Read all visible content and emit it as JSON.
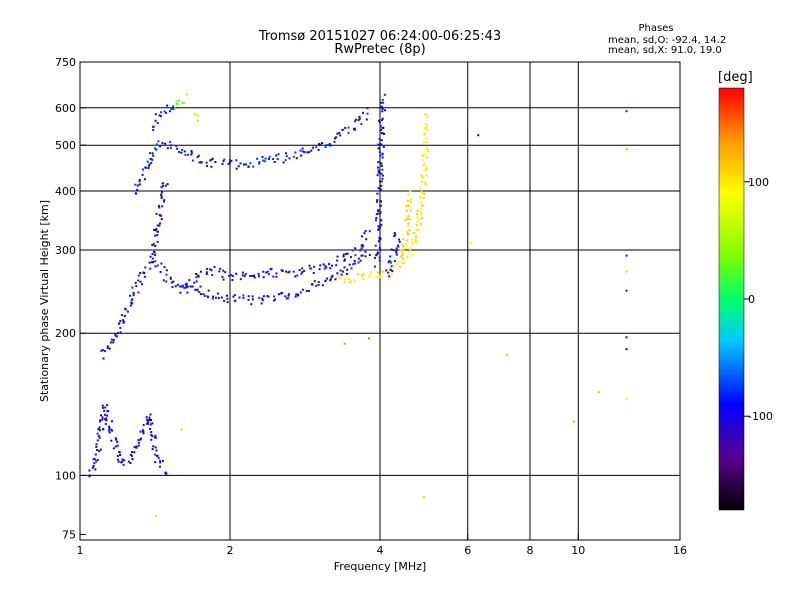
{
  "chart_data": {
    "type": "scatter",
    "title": "Tromsø 20151027 06:24:00-06:25:43",
    "subtitle": "RwPretec (8p)",
    "xlabel": "Frequency [MHz]",
    "ylabel": "Stationary phase Virtual Height [km]",
    "x_scale": "log2",
    "y_scale": "log",
    "xlim": [
      1,
      16
    ],
    "ylim": [
      73,
      750
    ],
    "x_ticks": [
      1,
      2,
      4,
      6,
      8,
      10,
      16
    ],
    "x_tick_labels": [
      "1",
      "2",
      "4",
      "6",
      "8",
      "10",
      "16"
    ],
    "x_gridlines": [
      2,
      4,
      6,
      8,
      10
    ],
    "y_ticks": [
      75,
      100,
      200,
      300,
      400,
      500,
      600,
      750
    ],
    "y_tick_labels": [
      "75",
      "100",
      "200",
      "300",
      "400",
      "500",
      "600",
      "750"
    ],
    "y_gridlines": [
      100,
      200,
      300,
      400,
      500,
      600
    ],
    "grid": true,
    "stats": {
      "heading": "Phases",
      "line_o": "mean, sd,O: -92.4, 14.2",
      "line_x": "mean, sd,X:  91.0, 19.0"
    },
    "colorbar": {
      "label": "[deg]",
      "range": [
        -180,
        180
      ],
      "ticks": [
        100,
        0,
        -100
      ],
      "tick_labels": [
        "100",
        "0",
        "-100"
      ],
      "colors": [
        "#000000",
        "#5a008c",
        "#0000ff",
        "#00c8ff",
        "#00ff6e",
        "#7aff00",
        "#ffff00",
        "#ff9600",
        "#ff0000"
      ]
    },
    "o_trace_color": "#1f3fe0",
    "x_trace_color": "#ffe600",
    "traces": [
      {
        "mode": "O",
        "phase": -95,
        "points": [
          [
            1.11,
            180
          ],
          [
            1.15,
            190
          ],
          [
            1.2,
            205
          ],
          [
            1.25,
            228
          ],
          [
            1.3,
            250
          ],
          [
            1.35,
            270
          ],
          [
            1.4,
            285
          ],
          [
            1.45,
            275
          ],
          [
            1.5,
            262
          ],
          [
            1.55,
            252
          ],
          [
            1.6,
            250
          ],
          [
            1.7,
            248
          ],
          [
            1.8,
            243
          ],
          [
            1.9,
            238
          ],
          [
            2.0,
            236
          ],
          [
            2.2,
            235
          ],
          [
            2.4,
            236
          ],
          [
            2.6,
            240
          ],
          [
            2.8,
            246
          ],
          [
            3.0,
            254
          ],
          [
            3.2,
            262
          ],
          [
            3.4,
            272
          ],
          [
            3.6,
            285
          ],
          [
            3.8,
            300
          ]
        ]
      },
      {
        "mode": "O",
        "phase": -100,
        "points": [
          [
            1.4,
            290
          ],
          [
            1.42,
            320
          ],
          [
            1.44,
            350
          ],
          [
            1.46,
            385
          ],
          [
            1.48,
            410
          ],
          [
            1.5,
            400
          ]
        ]
      },
      {
        "mode": "O",
        "phase": -95,
        "points": [
          [
            1.6,
            245
          ],
          [
            1.7,
            260
          ],
          [
            1.8,
            275
          ],
          [
            1.9,
            268
          ],
          [
            2.0,
            262
          ],
          [
            2.2,
            265
          ],
          [
            2.4,
            268
          ],
          [
            2.6,
            268
          ],
          [
            2.8,
            270
          ],
          [
            3.0,
            273
          ],
          [
            3.2,
            280
          ],
          [
            3.4,
            290
          ],
          [
            3.6,
            300
          ],
          [
            3.8,
            330
          ]
        ]
      },
      {
        "mode": "O",
        "phase": -90,
        "points": [
          [
            1.3,
            400
          ],
          [
            1.35,
            440
          ],
          [
            1.4,
            480
          ],
          [
            1.45,
            505
          ],
          [
            1.55,
            500
          ],
          [
            1.6,
            490
          ],
          [
            1.7,
            470
          ],
          [
            1.8,
            460
          ],
          [
            2.0,
            455
          ],
          [
            2.2,
            458
          ],
          [
            2.4,
            465
          ],
          [
            2.6,
            470
          ],
          [
            2.8,
            480
          ],
          [
            3.0,
            495
          ],
          [
            3.2,
            510
          ],
          [
            3.4,
            530
          ],
          [
            3.6,
            555
          ],
          [
            3.8,
            590
          ]
        ]
      },
      {
        "mode": "O",
        "phase": -90,
        "points": [
          [
            1.4,
            550
          ],
          [
            1.45,
            580
          ],
          [
            1.5,
            600
          ],
          [
            1.55,
            590
          ]
        ]
      },
      {
        "mode": "O",
        "phase": -100,
        "points": [
          [
            3.95,
            280
          ],
          [
            3.97,
            320
          ],
          [
            3.98,
            360
          ],
          [
            4.0,
            400
          ],
          [
            4.01,
            450
          ],
          [
            4.02,
            500
          ],
          [
            4.03,
            560
          ],
          [
            4.05,
            620
          ],
          [
            4.07,
            640
          ]
        ]
      },
      {
        "mode": "O",
        "phase": -90,
        "points": [
          [
            4.15,
            260
          ],
          [
            4.2,
            280
          ],
          [
            4.3,
            300
          ],
          [
            4.35,
            330
          ]
        ]
      },
      {
        "mode": "O",
        "phase": -100,
        "points": [
          [
            1.05,
            100
          ],
          [
            1.08,
            110
          ],
          [
            1.1,
            125
          ],
          [
            1.12,
            140
          ],
          [
            1.18,
            115
          ],
          [
            1.22,
            105
          ],
          [
            1.3,
            115
          ],
          [
            1.38,
            135
          ],
          [
            1.42,
            110
          ],
          [
            1.5,
            100
          ]
        ]
      },
      {
        "mode": "X",
        "phase": 95,
        "points": [
          [
            3.3,
            260
          ],
          [
            3.6,
            262
          ],
          [
            3.9,
            265
          ],
          [
            4.2,
            270
          ],
          [
            4.4,
            280
          ],
          [
            4.6,
            300
          ],
          [
            4.75,
            330
          ],
          [
            4.85,
            380
          ],
          [
            4.9,
            430
          ],
          [
            4.93,
            480
          ],
          [
            4.96,
            530
          ],
          [
            4.98,
            580
          ]
        ]
      },
      {
        "mode": "X",
        "phase": 105,
        "points": [
          [
            4.4,
            290
          ],
          [
            4.5,
            320
          ],
          [
            4.55,
            360
          ],
          [
            4.58,
            400
          ]
        ]
      },
      {
        "mode": "X",
        "phase": 40,
        "points": [
          [
            1.55,
            600
          ],
          [
            1.6,
            625
          ],
          [
            1.65,
            630
          ]
        ]
      },
      {
        "mode": "X",
        "phase": 60,
        "points": [
          [
            1.7,
            580
          ],
          [
            1.72,
            560
          ]
        ]
      }
    ],
    "isolated_points": [
      {
        "x": 7.2,
        "y": 180,
        "phase": 50
      },
      {
        "x": 9.8,
        "y": 130,
        "phase": 130
      },
      {
        "x": 11.0,
        "y": 150,
        "phase": 120
      },
      {
        "x": 12.5,
        "y": 292,
        "phase": -100
      },
      {
        "x": 12.5,
        "y": 270,
        "phase": 40
      },
      {
        "x": 12.5,
        "y": 246,
        "phase": -100
      },
      {
        "x": 12.5,
        "y": 196,
        "phase": -120
      },
      {
        "x": 12.5,
        "y": 185,
        "phase": -150
      },
      {
        "x": 12.5,
        "y": 145,
        "phase": 80
      },
      {
        "x": 12.5,
        "y": 590,
        "phase": -80
      },
      {
        "x": 12.5,
        "y": 490,
        "phase": 30
      },
      {
        "x": 6.3,
        "y": 525,
        "phase": -140
      },
      {
        "x": 3.4,
        "y": 190,
        "phase": 140
      },
      {
        "x": 3.8,
        "y": 195,
        "phase": 150
      },
      {
        "x": 4.9,
        "y": 90,
        "phase": 110
      },
      {
        "x": 1.42,
        "y": 82,
        "phase": 110
      },
      {
        "x": 6.1,
        "y": 310,
        "phase": 100
      },
      {
        "x": 1.6,
        "y": 125,
        "phase": 110
      }
    ]
  }
}
